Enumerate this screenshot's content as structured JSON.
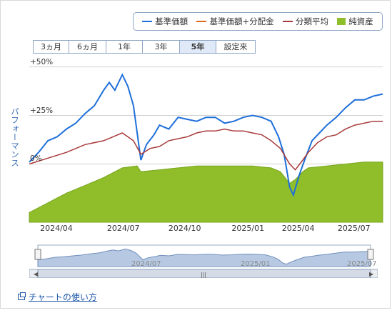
{
  "legend": {
    "items": [
      {
        "label": "基準価額",
        "color": "#1e6fd9",
        "kind": "line"
      },
      {
        "label": "基準価額+分配金",
        "color": "#e06a1b",
        "kind": "line"
      },
      {
        "label": "分類平均",
        "color": "#a83a3a",
        "kind": "line"
      },
      {
        "label": "純資産",
        "color": "#8fbe2a",
        "kind": "box"
      }
    ]
  },
  "tabs": [
    {
      "label": "3ヵ月",
      "active": false
    },
    {
      "label": "6ヵ月",
      "active": false
    },
    {
      "label": "1年",
      "active": false
    },
    {
      "label": "3年",
      "active": false
    },
    {
      "label": "5年",
      "active": true
    },
    {
      "label": "設定来",
      "active": false
    }
  ],
  "y_axis_label": "パフォーマンス",
  "help_link": "チャートの使い方",
  "navigator": {
    "ticks": [
      "2024/07",
      "2025/01",
      "2025/07"
    ],
    "scroll_grip": "|||"
  },
  "chart_data": {
    "type": "line",
    "x_tick_labels": [
      "2024/04",
      "2024/07",
      "2024/10",
      "2025/01",
      "2025/04",
      "2025/07"
    ],
    "y_tick_labels": [
      "+50%",
      "+25%",
      "0%"
    ],
    "ylim": [
      -30,
      55
    ],
    "x_range": [
      "2024/03",
      "2025/08"
    ],
    "grid": true,
    "series": [
      {
        "name": "基準価額",
        "color": "#1e6fd9",
        "points": [
          [
            0,
            1
          ],
          [
            0.5,
            6
          ],
          [
            1,
            12
          ],
          [
            1.5,
            14
          ],
          [
            2,
            18
          ],
          [
            2.5,
            21
          ],
          [
            3,
            26
          ],
          [
            3.5,
            30
          ],
          [
            4,
            38
          ],
          [
            4.3,
            42
          ],
          [
            4.6,
            38
          ],
          [
            5,
            46
          ],
          [
            5.3,
            40
          ],
          [
            5.6,
            30
          ],
          [
            6,
            2
          ],
          [
            6.3,
            10
          ],
          [
            6.7,
            15
          ],
          [
            7,
            20
          ],
          [
            7.5,
            18
          ],
          [
            8,
            24
          ],
          [
            8.5,
            23
          ],
          [
            9,
            22
          ],
          [
            9.5,
            24
          ],
          [
            10,
            24
          ],
          [
            10.5,
            21
          ],
          [
            11,
            22
          ],
          [
            11.5,
            24
          ],
          [
            12,
            25
          ],
          [
            12.5,
            24
          ],
          [
            13,
            22
          ],
          [
            13.4,
            14
          ],
          [
            13.7,
            5
          ],
          [
            14,
            -12
          ],
          [
            14.2,
            -16
          ],
          [
            14.5,
            -6
          ],
          [
            14.8,
            2
          ],
          [
            15.2,
            12
          ],
          [
            15.6,
            16
          ],
          [
            16,
            20
          ],
          [
            16.5,
            24
          ],
          [
            17,
            29
          ],
          [
            17.5,
            33
          ],
          [
            18,
            33
          ],
          [
            18.5,
            35
          ],
          [
            19,
            36
          ]
        ]
      },
      {
        "name": "基準価額+分配金",
        "color": "#e06a1b",
        "points": []
      },
      {
        "name": "分類平均",
        "color": "#a83a3a",
        "points": [
          [
            0,
            0
          ],
          [
            1,
            3
          ],
          [
            2,
            6
          ],
          [
            3,
            10
          ],
          [
            4,
            12
          ],
          [
            5,
            16
          ],
          [
            5.6,
            12
          ],
          [
            6,
            5
          ],
          [
            6.5,
            8
          ],
          [
            7,
            9
          ],
          [
            7.5,
            12
          ],
          [
            8,
            13
          ],
          [
            8.5,
            14
          ],
          [
            9,
            16
          ],
          [
            9.5,
            17
          ],
          [
            10,
            17
          ],
          [
            10.5,
            18
          ],
          [
            11,
            17
          ],
          [
            11.5,
            17
          ],
          [
            12,
            16
          ],
          [
            12.5,
            15
          ],
          [
            13,
            12
          ],
          [
            13.5,
            8
          ],
          [
            14,
            0
          ],
          [
            14.3,
            -3
          ],
          [
            14.7,
            2
          ],
          [
            15,
            6
          ],
          [
            15.5,
            11
          ],
          [
            16,
            14
          ],
          [
            16.5,
            15
          ],
          [
            17,
            18
          ],
          [
            17.5,
            20
          ],
          [
            18,
            21
          ],
          [
            18.5,
            22
          ],
          [
            19,
            22
          ]
        ]
      },
      {
        "name": "純資産",
        "color": "#8fbe2a",
        "kind": "area",
        "points": [
          [
            0,
            -25
          ],
          [
            1,
            -20
          ],
          [
            2,
            -15
          ],
          [
            3,
            -11
          ],
          [
            4,
            -7
          ],
          [
            5,
            -2
          ],
          [
            5.8,
            -1
          ],
          [
            6,
            -4
          ],
          [
            7,
            -3
          ],
          [
            8,
            -2
          ],
          [
            9,
            -1
          ],
          [
            10,
            -1
          ],
          [
            11,
            -1
          ],
          [
            12,
            -1
          ],
          [
            13,
            -2
          ],
          [
            13.5,
            -4
          ],
          [
            14,
            -10
          ],
          [
            14.3,
            -8
          ],
          [
            14.7,
            -4
          ],
          [
            15,
            -2
          ],
          [
            16,
            -1
          ],
          [
            17,
            0
          ],
          [
            18,
            1
          ],
          [
            19,
            1
          ]
        ]
      }
    ]
  }
}
